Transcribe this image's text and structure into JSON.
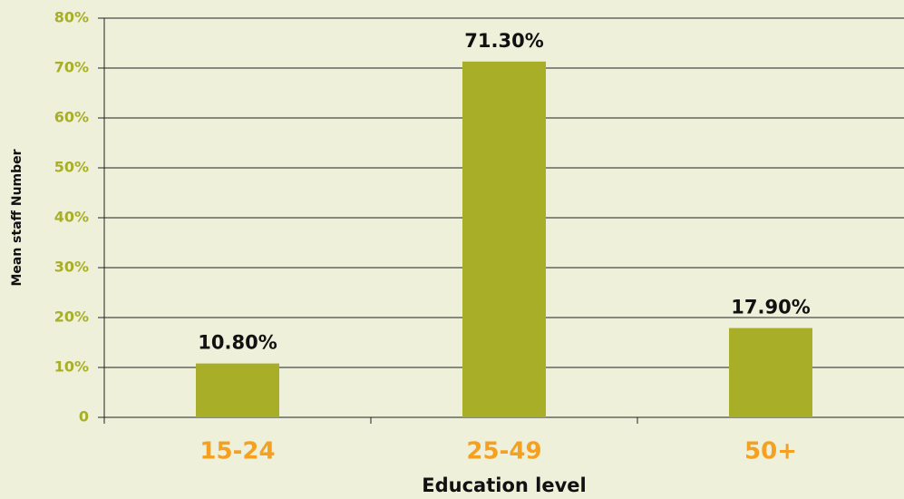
{
  "chart_data": {
    "type": "bar",
    "categories": [
      "15-24",
      "25-49",
      "50+"
    ],
    "values": [
      10.8,
      71.3,
      17.9
    ],
    "value_labels": [
      "10.80%",
      "71.30%",
      "17.90%"
    ],
    "color": "#a8ae27",
    "xlabel": "Education level",
    "ylabel": "Mean staff Number",
    "ylim": [
      0,
      80
    ],
    "yticks": [
      0,
      {
        "value": 10,
        "label": "10%"
      },
      {
        "value": 20,
        "label": "20%"
      },
      {
        "value": 30,
        "label": "30%"
      },
      {
        "value": 40,
        "label": "40%"
      },
      {
        "value": 50,
        "label": "50%"
      },
      {
        "value": 60,
        "label": "60%"
      },
      {
        "value": 70,
        "label": "70%"
      },
      {
        "value": 80,
        "label": "80%"
      }
    ],
    "grid": true
  }
}
